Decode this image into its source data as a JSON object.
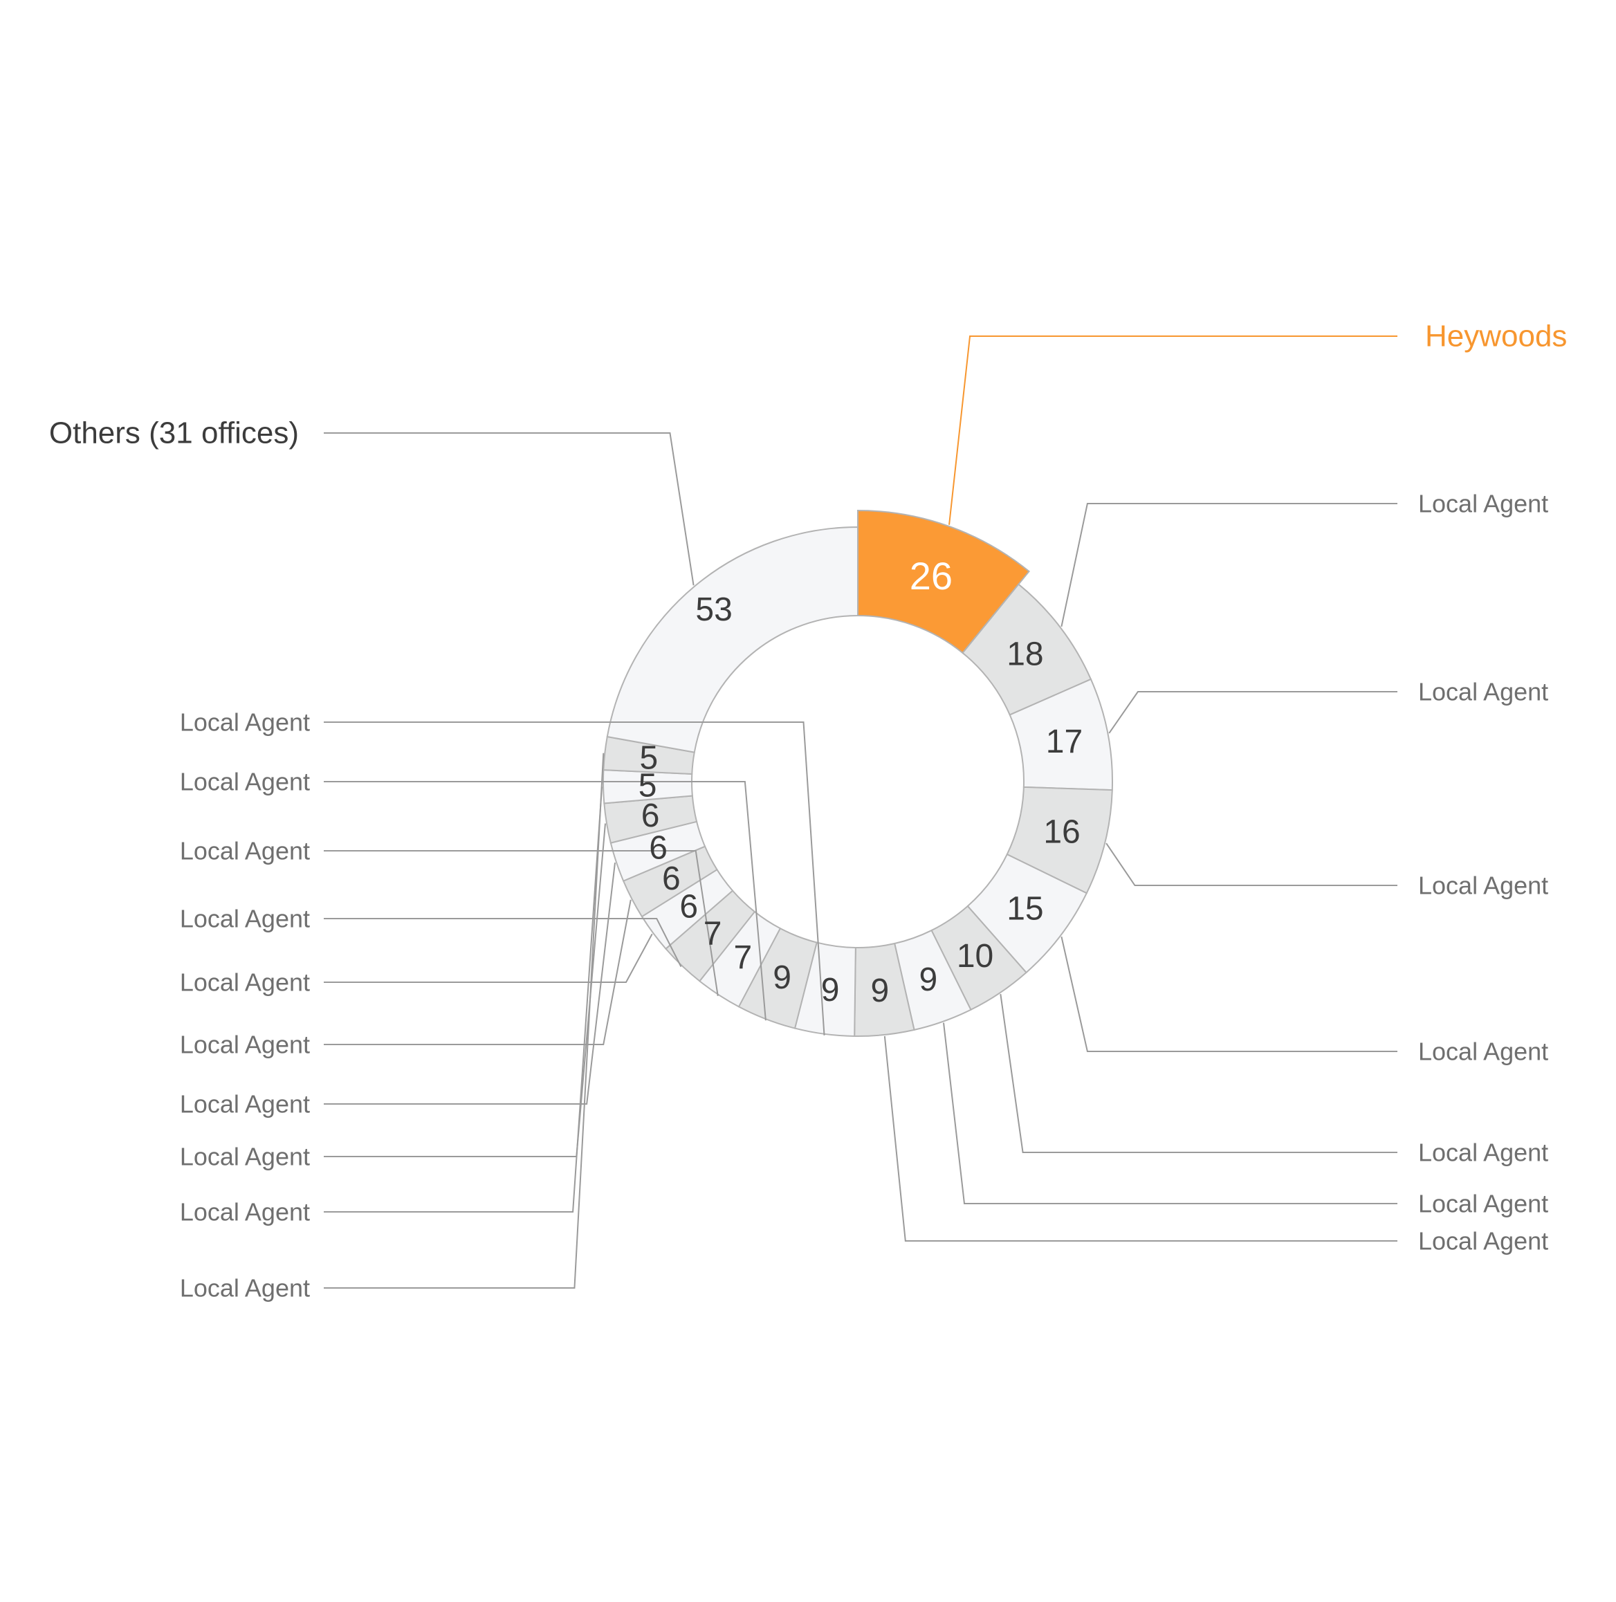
{
  "chart_data": {
    "type": "pie",
    "style": "donut",
    "start": "top, clockwise",
    "slices": [
      {
        "label": "Heywoods",
        "value": 26,
        "highlight": true
      },
      {
        "label": "Local Agent",
        "value": 18
      },
      {
        "label": "Local Agent",
        "value": 17
      },
      {
        "label": "Local Agent",
        "value": 16
      },
      {
        "label": "Local Agent",
        "value": 15
      },
      {
        "label": "Local Agent",
        "value": 10
      },
      {
        "label": "Local Agent",
        "value": 9
      },
      {
        "label": "Local Agent",
        "value": 9
      },
      {
        "label": "Local Agent",
        "value": 9
      },
      {
        "label": "Local Agent",
        "value": 9
      },
      {
        "label": "Local Agent",
        "value": 7
      },
      {
        "label": "Local Agent",
        "value": 7
      },
      {
        "label": "Local Agent",
        "value": 6
      },
      {
        "label": "Local Agent",
        "value": 6
      },
      {
        "label": "Local Agent",
        "value": 6
      },
      {
        "label": "Local Agent",
        "value": 6
      },
      {
        "label": "Local Agent",
        "value": 5
      },
      {
        "label": "Local Agent",
        "value": 5
      },
      {
        "label": "Others (31 offices)",
        "value": 53
      }
    ],
    "colors": {
      "highlight": "#fb9a35",
      "light": "#f5f6f8",
      "dark": "#e3e4e4",
      "border": "#b3b3b3",
      "highlight_text": "#f7962f",
      "value_text": "#3c3c3c",
      "label_text": "#6f6f6f"
    }
  }
}
